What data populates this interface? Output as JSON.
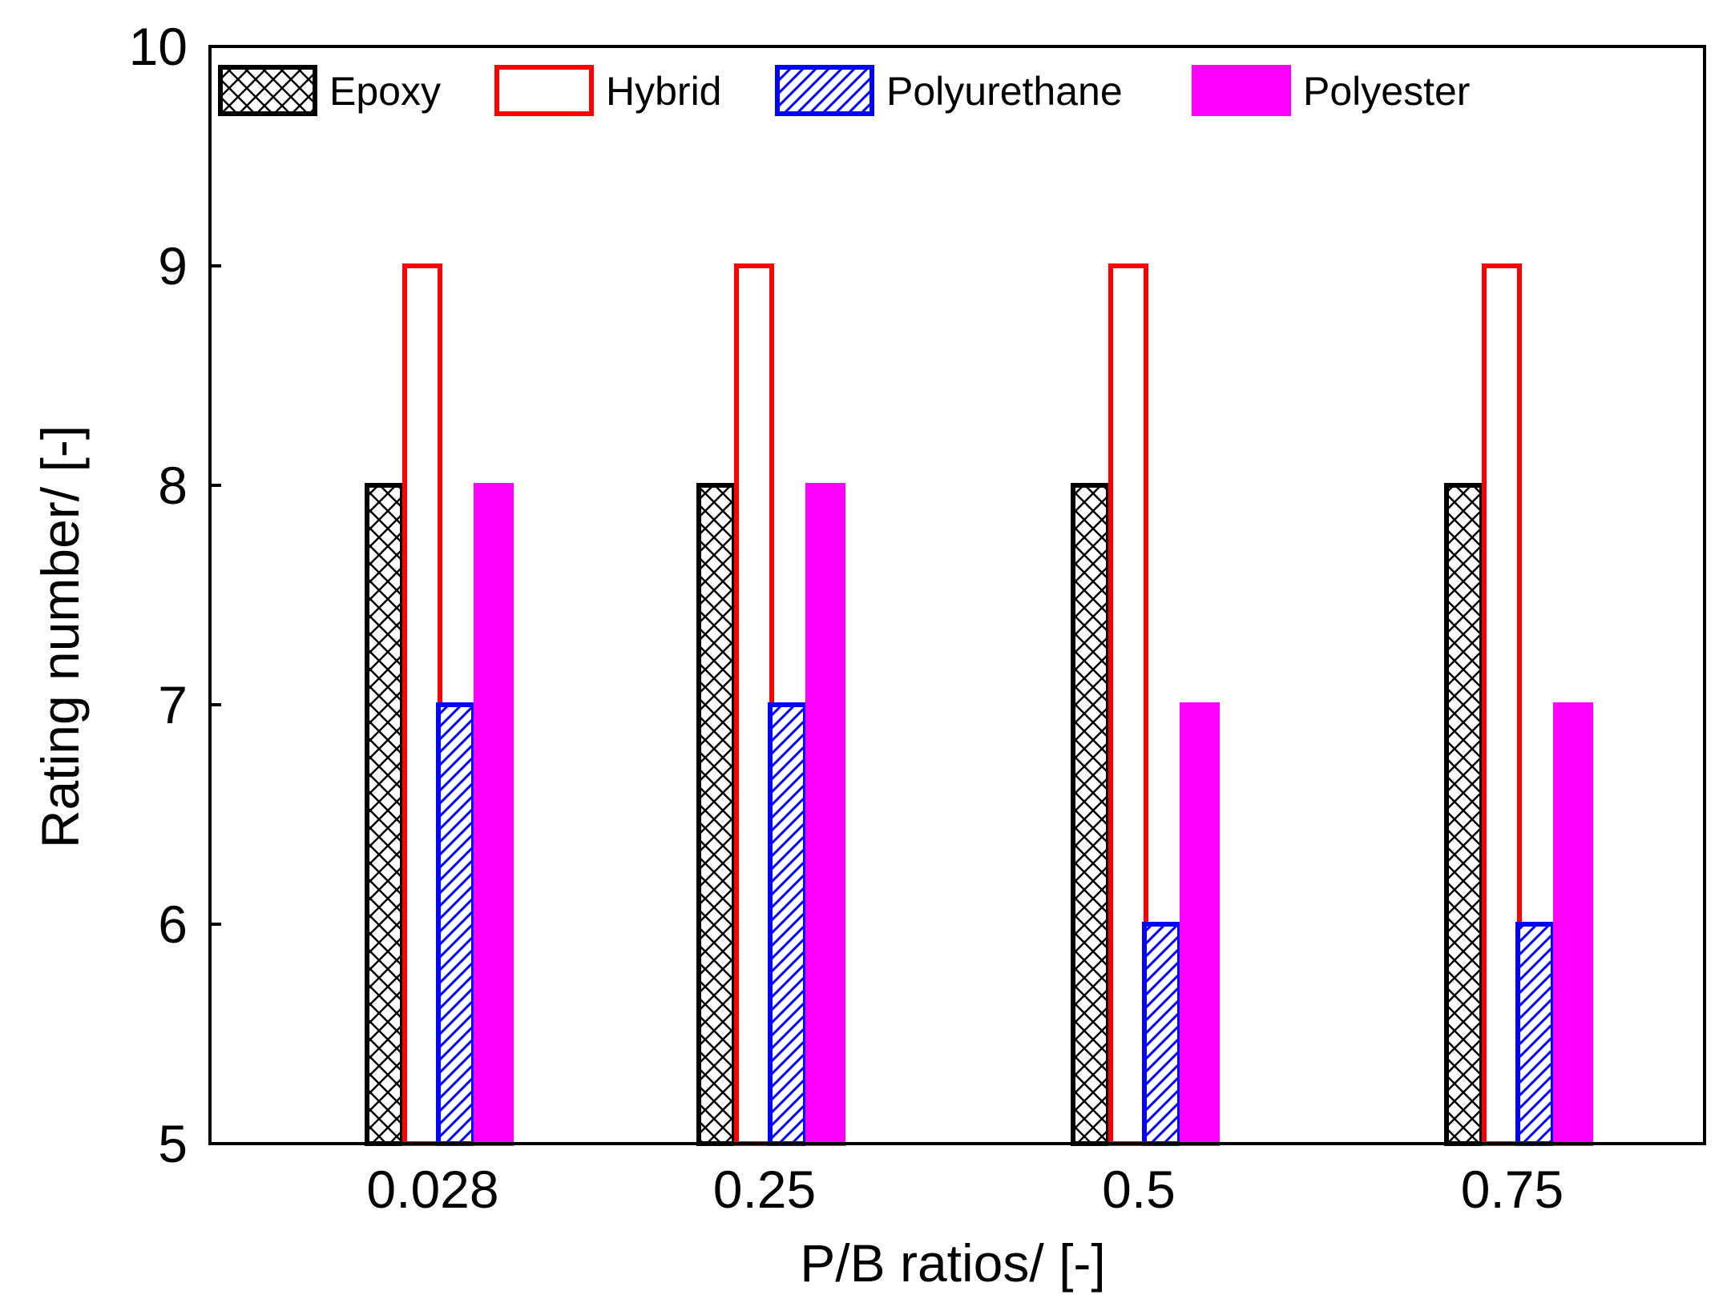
{
  "chart_data": {
    "type": "bar",
    "title": "",
    "xlabel": "P/B ratios/ [-]",
    "ylabel": "Rating number/ [-]",
    "ylim": [
      5,
      10
    ],
    "yticks": [
      "5",
      "6",
      "7",
      "8",
      "9",
      "10"
    ],
    "categories": [
      "0.028",
      "0.25",
      "0.5",
      "0.75"
    ],
    "legend_position": "top",
    "series": [
      {
        "name": "Epoxy",
        "values": [
          8,
          8,
          8,
          8
        ],
        "color": "#000000",
        "fill": "crosshatch"
      },
      {
        "name": "Hybrid",
        "values": [
          9,
          9,
          9,
          9
        ],
        "color": "#ff0000",
        "fill": "none"
      },
      {
        "name": "Polyurethane",
        "values": [
          7,
          7,
          6,
          6
        ],
        "color": "#0000ff",
        "fill": "diagonal"
      },
      {
        "name": "Polyester",
        "values": [
          8,
          8,
          7,
          7
        ],
        "color": "#ff00ff",
        "fill": "solid"
      }
    ]
  }
}
